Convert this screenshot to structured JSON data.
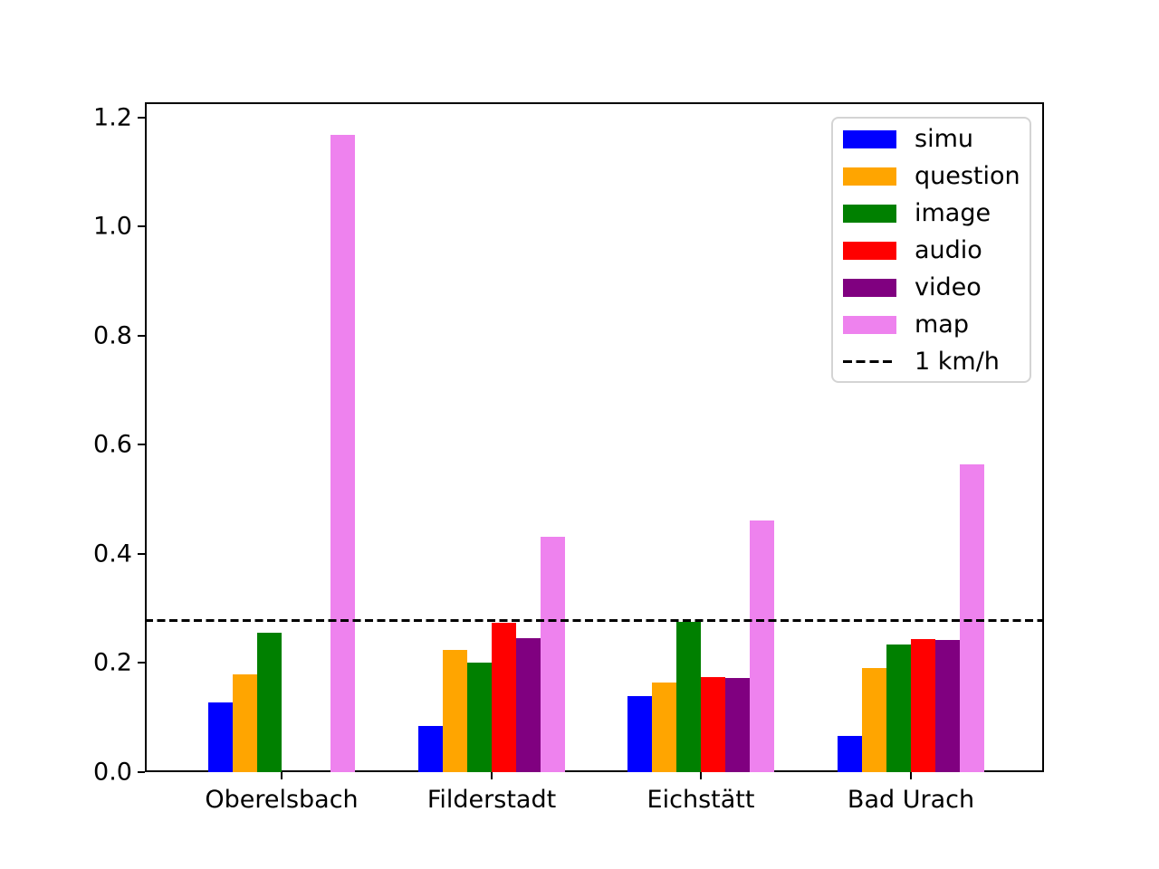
{
  "chart_data": {
    "type": "bar",
    "title": "",
    "xlabel": "",
    "ylabel": "",
    "categories": [
      "Oberelsbach",
      "Filderstadt",
      "Eichstätt",
      "Bad Urach"
    ],
    "series": [
      {
        "name": "simu",
        "color": "#0000ff",
        "values": [
          0.128,
          0.085,
          0.139,
          0.067
        ]
      },
      {
        "name": "question",
        "color": "#ffa500",
        "values": [
          0.18,
          0.224,
          0.164,
          0.191
        ]
      },
      {
        "name": "image",
        "color": "#008000",
        "values": [
          0.256,
          0.2,
          0.275,
          0.234
        ]
      },
      {
        "name": "audio",
        "color": "#ff0000",
        "values": [
          0.0,
          0.274,
          0.174,
          0.244
        ]
      },
      {
        "name": "video",
        "color": "#800080",
        "values": [
          0.0,
          0.245,
          0.172,
          0.242
        ]
      },
      {
        "name": "map",
        "color": "#ee82ee",
        "values": [
          1.168,
          0.432,
          0.462,
          0.564
        ]
      }
    ],
    "reference_line": {
      "label": "1 km/h",
      "value": 0.2778,
      "style": "dashed",
      "color": "#000000"
    },
    "ylim": [
      0,
      1.228
    ],
    "yticks": [
      "0.0",
      "0.2",
      "0.4",
      "0.6",
      "0.8",
      "1.0",
      "1.2"
    ],
    "grid": false,
    "legend_position": "upper right",
    "background_color": "#ffffff",
    "axis_color": "#000000"
  }
}
